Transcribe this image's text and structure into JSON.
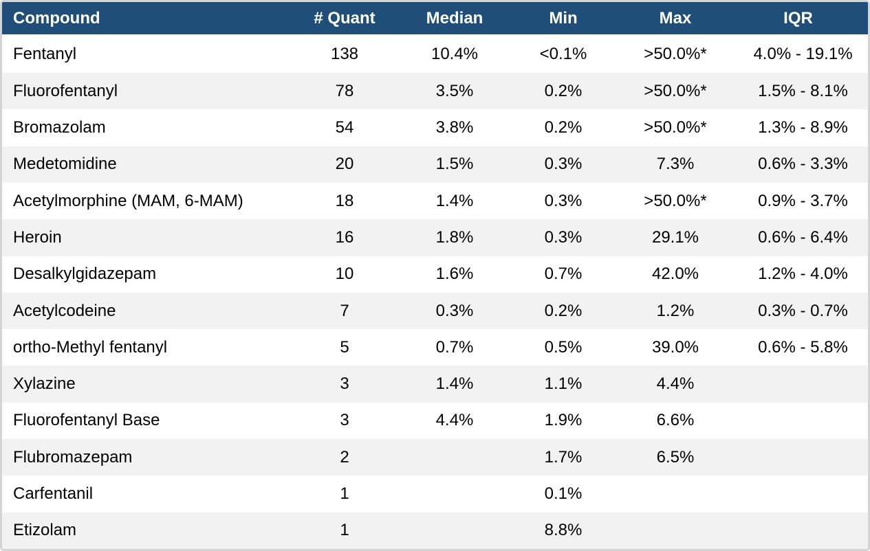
{
  "chart_data": {
    "type": "table",
    "columns": [
      "Compound",
      "# Quant",
      "Median",
      "Min",
      "Max",
      "IQR"
    ],
    "rows": [
      [
        "Fentanyl",
        "138",
        "10.4%",
        "<0.1%",
        ">50.0%*",
        "4.0% - 19.1%"
      ],
      [
        "Fluorofentanyl",
        "78",
        "3.5%",
        "0.2%",
        ">50.0%*",
        "1.5% - 8.1%"
      ],
      [
        "Bromazolam",
        "54",
        "3.8%",
        "0.2%",
        ">50.0%*",
        "1.3% - 8.9%"
      ],
      [
        "Medetomidine",
        "20",
        "1.5%",
        "0.3%",
        "7.3%",
        "0.6% - 3.3%"
      ],
      [
        "Acetylmorphine (MAM, 6-MAM)",
        "18",
        "1.4%",
        "0.3%",
        ">50.0%*",
        "0.9% - 3.7%"
      ],
      [
        "Heroin",
        "16",
        "1.8%",
        "0.3%",
        "29.1%",
        "0.6% - 6.4%"
      ],
      [
        "Desalkylgidazepam",
        "10",
        "1.6%",
        "0.7%",
        "42.0%",
        "1.2% - 4.0%"
      ],
      [
        "Acetylcodeine",
        "7",
        "0.3%",
        "0.2%",
        "1.2%",
        "0.3% - 0.7%"
      ],
      [
        "ortho-Methyl fentanyl",
        "5",
        "0.7%",
        "0.5%",
        "39.0%",
        "0.6% - 5.8%"
      ],
      [
        "Xylazine",
        "3",
        "1.4%",
        "1.1%",
        "4.4%",
        ""
      ],
      [
        "Fluorofentanyl Base",
        "3",
        "4.4%",
        "1.9%",
        "6.6%",
        ""
      ],
      [
        "Flubromazepam",
        "2",
        "",
        "1.7%",
        "6.5%",
        ""
      ],
      [
        "Carfentanil",
        "1",
        "",
        "0.1%",
        "",
        ""
      ],
      [
        "Etizolam",
        "1",
        "",
        "8.8%",
        "",
        ""
      ]
    ],
    "notes": {
      "asterisk_meaning_visible_text": ">50.0%*"
    },
    "layout": {
      "striped": true,
      "header_position": "top"
    }
  },
  "colors": {
    "header_bg": "#1f4e79",
    "header_text": "#ffffff",
    "row_bg": "#ffffff",
    "row_stripe_bg": "#f2f2f2",
    "body_text": "#000000",
    "outer_border": "#d4d4d4"
  }
}
